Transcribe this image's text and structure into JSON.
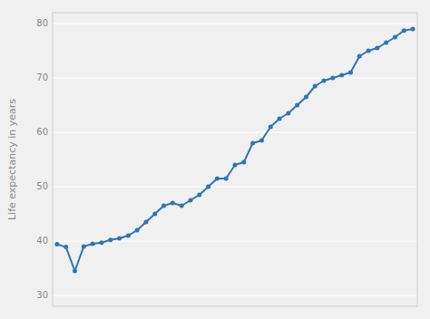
{
  "chart_data": {
    "type": "line",
    "ylabel": "Life expectancy in years",
    "x": [
      0,
      1,
      2,
      3,
      4,
      5,
      6,
      7,
      8,
      9,
      10,
      11,
      12,
      13,
      14,
      15,
      16,
      17,
      18,
      19,
      20,
      21,
      22,
      23,
      24,
      25,
      26,
      27,
      28,
      29,
      30,
      31,
      32,
      33,
      34,
      35,
      36,
      37,
      38,
      39,
      40
    ],
    "values": [
      39.4,
      38.9,
      34.5,
      39.0,
      39.5,
      39.7,
      40.2,
      40.5,
      41.0,
      42.0,
      43.5,
      45.0,
      46.5,
      47.0,
      46.5,
      47.5,
      48.5,
      50.0,
      51.5,
      51.5,
      54.0,
      54.5,
      58.0,
      58.5,
      61.0,
      62.5,
      63.5,
      65.0,
      66.5,
      68.5,
      69.5,
      70.0,
      70.5,
      71.0,
      74.0,
      75.0,
      75.5,
      76.5,
      77.5,
      78.7,
      79.0
    ],
    "color": "#2e75b6",
    "marker": "o",
    "xlim": [
      -0.5,
      40.5
    ],
    "ylim": [
      28,
      82
    ],
    "yticks": [
      30,
      40,
      50,
      60,
      70,
      80
    ],
    "grid": true,
    "tick_labels": "y"
  }
}
